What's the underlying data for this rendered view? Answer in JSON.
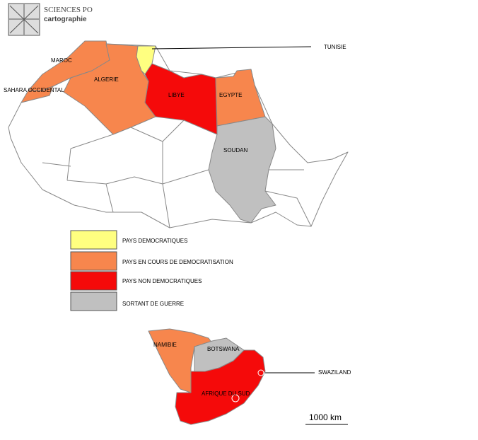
{
  "logo": {
    "title": "SCIENCES PO",
    "subtitle": "cartographie"
  },
  "countries": [
    "MAROC",
    "SAHARA OCCIDENTAL",
    "ALGERIE",
    "TUNISIE",
    "LIBYE",
    "EGYPTE",
    "SOUDAN",
    "NAMIBIE",
    "BOTSWANA",
    "AFRIQUE DU SUD",
    "SWAZILAND"
  ],
  "legend": [
    "PAYS DEMOCRATIQUES",
    "PAYS EN COURS DE DEMOCRATISATION",
    "PAYS NON DEMOCRATIQUES",
    "SORTANT DE GUERRE"
  ],
  "scale": "1000 km"
}
